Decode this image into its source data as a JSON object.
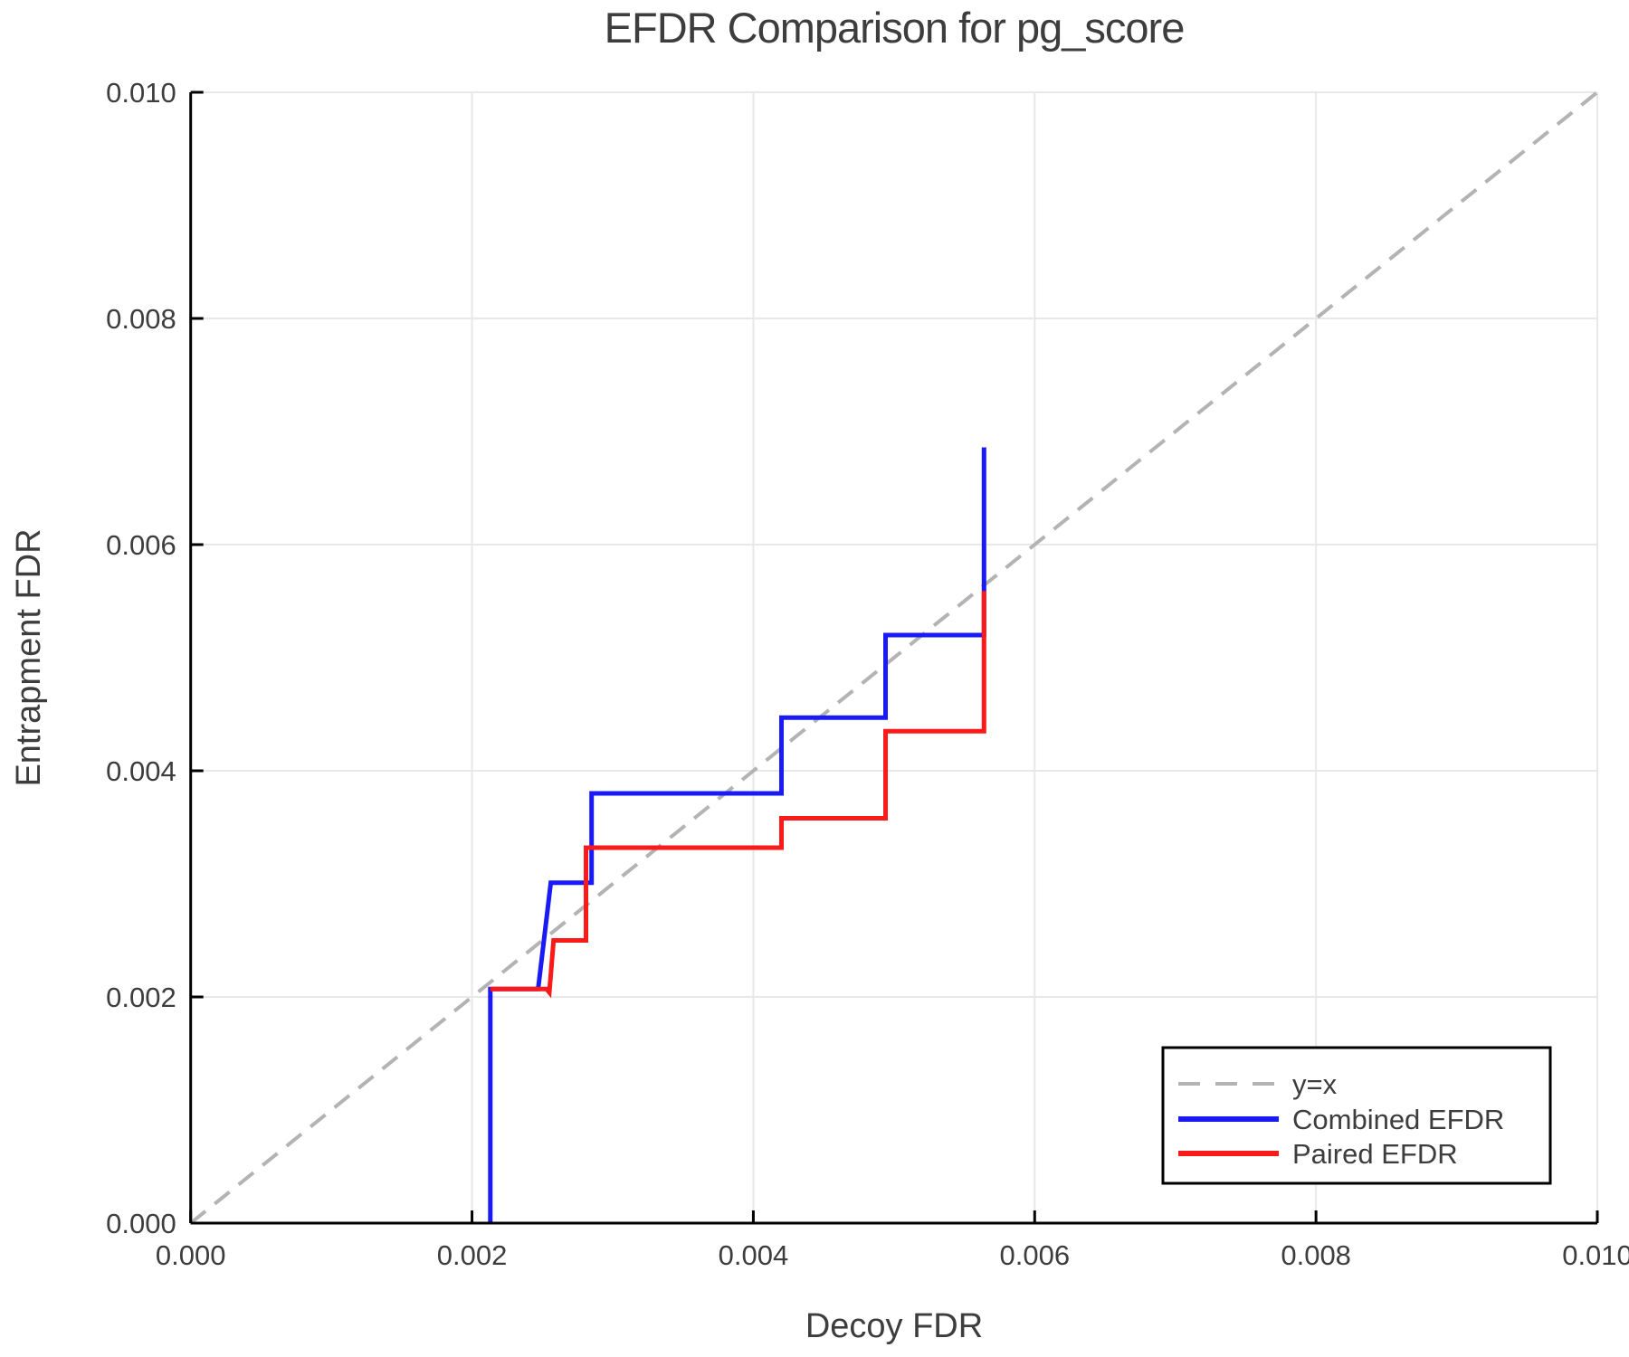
{
  "chart_data": {
    "type": "line",
    "title": "EFDR Comparison for pg_score",
    "xlabel": "Decoy FDR",
    "ylabel": "Entrapment FDR",
    "xlim": [
      0.0,
      0.01
    ],
    "ylim": [
      0.0,
      0.01
    ],
    "grid": true,
    "legend_position": "bottom-right",
    "xticks": {
      "values": [
        0.0,
        0.002,
        0.004,
        0.006,
        0.008,
        0.01
      ],
      "labels": [
        "0.000",
        "0.002",
        "0.004",
        "0.006",
        "0.008",
        "0.010"
      ]
    },
    "yticks": {
      "values": [
        0.0,
        0.002,
        0.004,
        0.006,
        0.008,
        0.01
      ],
      "labels": [
        "0.000",
        "0.002",
        "0.004",
        "0.006",
        "0.008",
        "0.010"
      ]
    },
    "series": [
      {
        "name": "y=x",
        "style": "dashed",
        "color": "#b3b3b3",
        "x": [
          0.0,
          0.01
        ],
        "y": [
          0.0,
          0.01
        ]
      },
      {
        "name": "Combined EFDR",
        "style": "solid",
        "color": "#1a1af5",
        "x": [
          0.00213,
          0.00213,
          0.00247,
          0.00256,
          0.00285,
          0.00285,
          0.0042,
          0.0042,
          0.00494,
          0.00494,
          0.00564,
          0.00564
        ],
        "y": [
          0.0,
          0.00207,
          0.00207,
          0.00301,
          0.00301,
          0.0038,
          0.0038,
          0.00447,
          0.00447,
          0.0052,
          0.0052,
          0.00686
        ]
      },
      {
        "name": "Paired EFDR",
        "style": "solid",
        "color": "#fa1a1a",
        "x": [
          0.00213,
          0.00253,
          0.00255,
          0.00258,
          0.00281,
          0.00281,
          0.0042,
          0.0042,
          0.00494,
          0.00494,
          0.00564,
          0.00564
        ],
        "y": [
          0.00207,
          0.00207,
          0.00204,
          0.0025,
          0.0025,
          0.00332,
          0.00332,
          0.00358,
          0.00358,
          0.00435,
          0.00435,
          0.00559
        ]
      }
    ],
    "colors": {
      "grid": "#e8e8e8",
      "frame_light": "#e2e2e2",
      "spine": "#000000",
      "text": "#3d3d3d"
    }
  },
  "legend": {
    "items": [
      {
        "label": "y=x"
      },
      {
        "label": "Combined EFDR"
      },
      {
        "label": "Paired EFDR"
      }
    ]
  }
}
